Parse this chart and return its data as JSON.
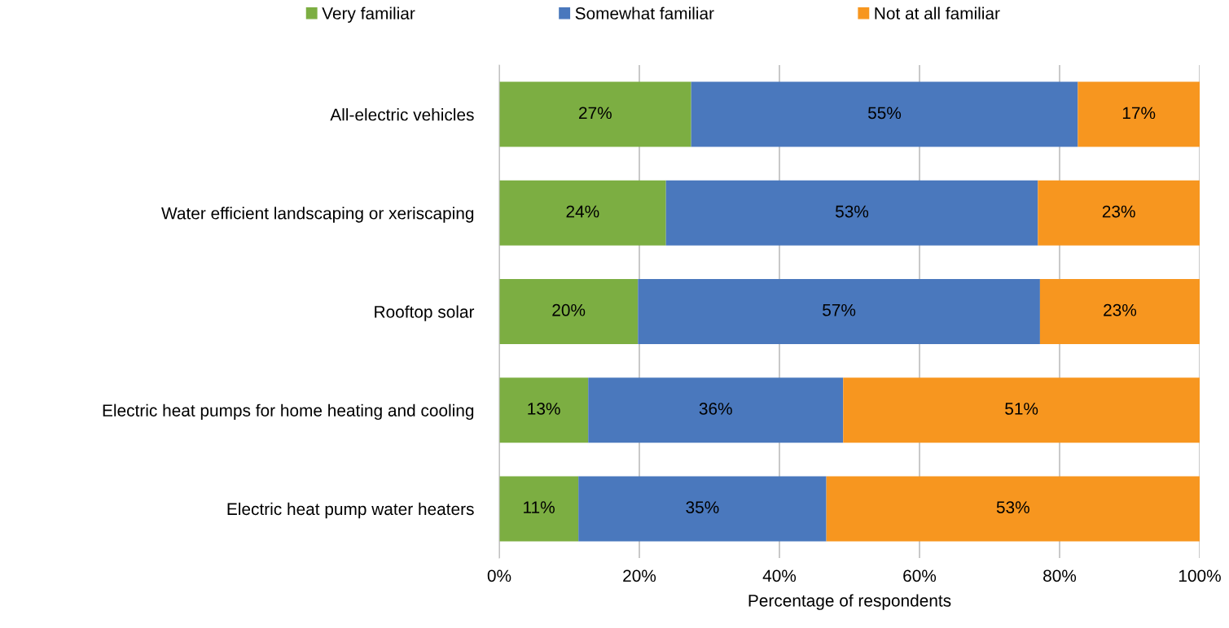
{
  "chart_data": {
    "type": "bar",
    "orientation": "horizontal",
    "stacked": true,
    "categories": [
      "All-electric vehicles",
      "Water efficient landscaping or xeriscaping",
      "Rooftop solar",
      "Electric heat pumps for home heating and cooling",
      "Electric heat pump water heaters"
    ],
    "series": [
      {
        "name": "Very familiar",
        "color": "#7cae42",
        "values": [
          27.4,
          23.8,
          19.8,
          12.7,
          11.3
        ],
        "value_labels": [
          "27%",
          "24%",
          "20%",
          "13%",
          "11%"
        ]
      },
      {
        "name": "Somewhat familiar",
        "color": "#4a78bd",
        "values": [
          55.2,
          53.1,
          57.4,
          36.4,
          35.4
        ],
        "value_labels": [
          "55%",
          "53%",
          "57%",
          "36%",
          "35%"
        ]
      },
      {
        "name": "Not at all familiar",
        "color": "#f7961f",
        "values": [
          17.4,
          23.1,
          22.8,
          50.9,
          53.3
        ],
        "value_labels": [
          "17%",
          "23%",
          "23%",
          "51%",
          "53%"
        ]
      }
    ],
    "xlabel": "Percentage of respondents",
    "xlim": [
      0,
      100
    ],
    "xticks": [
      {
        "value": 0,
        "label": "0%"
      },
      {
        "value": 20,
        "label": "20%"
      },
      {
        "value": 40,
        "label": "40%"
      },
      {
        "value": 60,
        "label": "60%"
      },
      {
        "value": 80,
        "label": "80%"
      },
      {
        "value": 100,
        "label": "100%"
      }
    ],
    "grid": "x",
    "legend": "top"
  }
}
